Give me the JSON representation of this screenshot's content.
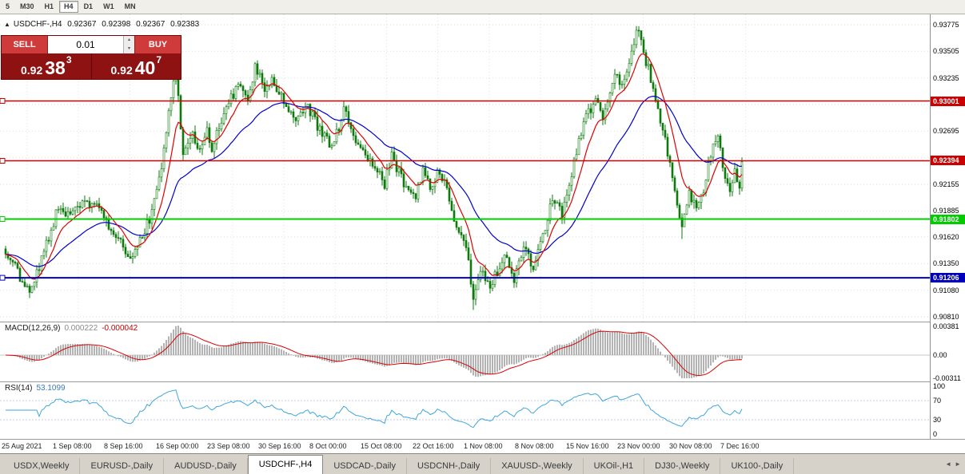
{
  "toolbar": {
    "timeframes": [
      {
        "label": "5",
        "active": false
      },
      {
        "label": "M30",
        "active": false
      },
      {
        "label": "H1",
        "active": false
      },
      {
        "label": "H4",
        "active": true
      },
      {
        "label": "D1",
        "active": false
      },
      {
        "label": "W1",
        "active": false
      },
      {
        "label": "MN",
        "active": false
      }
    ]
  },
  "chart_header": {
    "icon": "▲",
    "symbol": "USDCHF-,H4",
    "open": "0.92367",
    "high": "0.92398",
    "low": "0.92367",
    "close": "0.92383"
  },
  "trade_panel": {
    "sell_label": "SELL",
    "buy_label": "BUY",
    "volume": "0.01",
    "spin_up_icon": "▴",
    "spin_down_icon": "▾",
    "bid_prefix": "0.92",
    "bid_pips": "38",
    "bid_sup": "3",
    "ask_prefix": "0.92",
    "ask_pips": "40",
    "ask_sup": "7"
  },
  "indicators": {
    "macd": {
      "name": "MACD(12,26,9)",
      "value": "0.000222",
      "signal": "-0.000042"
    },
    "rsi": {
      "name": "RSI(14)",
      "value": "53.1099"
    }
  },
  "price_scale": {
    "ticks": [
      {
        "label": "0.93775",
        "value": 0.93775
      },
      {
        "label": "0.93505",
        "value": 0.93505
      },
      {
        "label": "0.93235",
        "value": 0.93235
      },
      {
        "label": "0.92695",
        "value": 0.92695
      },
      {
        "label": "0.92155",
        "value": 0.92155
      },
      {
        "label": "0.91885",
        "value": 0.91885
      },
      {
        "label": "0.91620",
        "value": 0.9162
      },
      {
        "label": "0.91350",
        "value": 0.9135
      },
      {
        "label": "0.91080",
        "value": 0.9108
      },
      {
        "label": "0.90810",
        "value": 0.9081
      }
    ]
  },
  "macd_scale": [
    {
      "label": "0.00381",
      "value": 0.00381
    },
    {
      "label": "0.00",
      "value": 0
    },
    {
      "label": "-0.00311",
      "value": -0.00311
    }
  ],
  "rsi_scale": [
    {
      "label": "100",
      "value": 100
    },
    {
      "label": "70",
      "value": 70
    },
    {
      "label": "30",
      "value": 30
    },
    {
      "label": "0",
      "value": 0
    }
  ],
  "time_axis": {
    "labels": [
      "25 Aug 2021",
      "1 Sep 08:00",
      "8 Sep 16:00",
      "16 Sep 00:00",
      "23 Sep 08:00",
      "30 Sep 16:00",
      "8 Oct 00:00",
      "15 Oct 08:00",
      "22 Oct 16:00",
      "1 Nov 08:00",
      "8 Nov 08:00",
      "15 Nov 16:00",
      "23 Nov 00:00",
      "30 Nov 08:00",
      "7 Dec 16:00"
    ]
  },
  "tabs": {
    "items": [
      {
        "label": "USDX,Weekly",
        "active": false
      },
      {
        "label": "EURUSD-,Daily",
        "active": false
      },
      {
        "label": "AUDUSD-,Daily",
        "active": false
      },
      {
        "label": "USDCHF-,H4",
        "active": true
      },
      {
        "label": "USDCAD-,Daily",
        "active": false
      },
      {
        "label": "USDCNH-,Daily",
        "active": false
      },
      {
        "label": "XAUUSD-,Weekly",
        "active": false
      },
      {
        "label": "UKOil-,H1",
        "active": false
      },
      {
        "label": "DJ30-,Weekly",
        "active": false
      },
      {
        "label": "UK100-,Daily",
        "active": false
      }
    ],
    "scroll_left_icon": "◄",
    "scroll_right_icon": "►"
  },
  "chart_data": {
    "type": "candlestick-with-indicators",
    "symbol": "USDCHF-",
    "period": "H4",
    "price_axis": {
      "top_price": 0.93775,
      "bottom_price": 0.9081
    },
    "grid_prices": [
      0.93775,
      0.93505,
      0.93235,
      0.92965,
      0.92695,
      0.92425,
      0.92155,
      0.91885,
      0.9162,
      0.9135,
      0.9108,
      0.9081
    ],
    "hlines": [
      {
        "price": 0.93001,
        "label": "0.93001",
        "color": "#cc0000",
        "width": 1.6
      },
      {
        "price": 0.92394,
        "label": "0.92394",
        "color": "#cc0000",
        "width": 1.6
      },
      {
        "price": 0.91802,
        "label": "0.91802",
        "color": "#00cc00",
        "width": 2
      },
      {
        "price": 0.91206,
        "label": "0.91206",
        "color": "#0000bb",
        "width": 2
      }
    ],
    "colors": {
      "candle": "#0e7a0e",
      "candle_up_fill": "#ffffff",
      "ma_fast": "#e00000",
      "ma_slow": "#0000d0",
      "macd_hist": "#b3b3b3",
      "macd_signal": "#dd0000",
      "rsi": "#3ea6dd",
      "grid": "#dedede"
    },
    "macd_axis": {
      "max": 0.00381,
      "min": -0.00311
    },
    "candles": {
      "count": 308,
      "last_close": 0.92383,
      "anchors": [
        [
          0,
          0.915
        ],
        [
          10,
          0.9102
        ],
        [
          21,
          0.9185
        ],
        [
          30,
          0.9192
        ],
        [
          38,
          0.92
        ],
        [
          45,
          0.9165
        ],
        [
          53,
          0.914
        ],
        [
          60,
          0.918
        ],
        [
          65,
          0.923
        ],
        [
          68,
          0.929
        ],
        [
          71,
          0.9338
        ],
        [
          74,
          0.9245
        ],
        [
          78,
          0.9268
        ],
        [
          81,
          0.9248
        ],
        [
          84,
          0.9268
        ],
        [
          86,
          0.9252
        ],
        [
          93,
          0.93
        ],
        [
          98,
          0.9318
        ],
        [
          101,
          0.9296
        ],
        [
          104,
          0.9338
        ],
        [
          108,
          0.931
        ],
        [
          111,
          0.9324
        ],
        [
          116,
          0.93
        ],
        [
          121,
          0.9282
        ],
        [
          126,
          0.9294
        ],
        [
          131,
          0.927
        ],
        [
          136,
          0.9252
        ],
        [
          141,
          0.929
        ],
        [
          145,
          0.9266
        ],
        [
          150,
          0.9242
        ],
        [
          155,
          0.923
        ],
        [
          158,
          0.9216
        ],
        [
          161,
          0.9244
        ],
        [
          166,
          0.9218
        ],
        [
          171,
          0.9202
        ],
        [
          174,
          0.9232
        ],
        [
          177,
          0.9208
        ],
        [
          180,
          0.9228
        ],
        [
          184,
          0.9212
        ],
        [
          189,
          0.9162
        ],
        [
          192,
          0.9152
        ],
        [
          195,
          0.9102
        ],
        [
          198,
          0.9132
        ],
        [
          202,
          0.9112
        ],
        [
          205,
          0.9126
        ],
        [
          208,
          0.9142
        ],
        [
          212,
          0.912
        ],
        [
          216,
          0.9152
        ],
        [
          220,
          0.913
        ],
        [
          224,
          0.9165
        ],
        [
          228,
          0.92
        ],
        [
          232,
          0.9186
        ],
        [
          236,
          0.9226
        ],
        [
          240,
          0.927
        ],
        [
          243,
          0.9288
        ],
        [
          246,
          0.93
        ],
        [
          249,
          0.9282
        ],
        [
          252,
          0.931
        ],
        [
          255,
          0.933
        ],
        [
          257,
          0.9312
        ],
        [
          260,
          0.9342
        ],
        [
          262,
          0.9362
        ],
        [
          264,
          0.9372
        ],
        [
          266,
          0.935
        ],
        [
          268,
          0.9332
        ],
        [
          271,
          0.93
        ],
        [
          274,
          0.9272
        ],
        [
          277,
          0.9236
        ],
        [
          280,
          0.9198
        ],
        [
          282,
          0.9172
        ],
        [
          285,
          0.9206
        ],
        [
          288,
          0.9192
        ],
        [
          291,
          0.9212
        ],
        [
          294,
          0.9246
        ],
        [
          297,
          0.9262
        ],
        [
          300,
          0.9224
        ],
        [
          302,
          0.9206
        ],
        [
          304,
          0.923
        ],
        [
          306,
          0.9216
        ],
        [
          307,
          0.92383
        ]
      ],
      "spikes": [
        {
          "bar": 10,
          "low": 0.91
        },
        {
          "bar": 71,
          "high": 0.9341
        },
        {
          "bar": 195,
          "low": 0.9088
        },
        {
          "bar": 264,
          "high": 0.9376
        },
        {
          "bar": 282,
          "low": 0.916
        }
      ]
    }
  }
}
